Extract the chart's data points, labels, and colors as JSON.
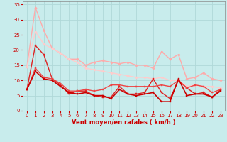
{
  "xlabel": "Vent moyen/en rafales ( km/h )",
  "background_color": "#c8ecec",
  "grid_color": "#b0d8d8",
  "xlim": [
    -0.5,
    23.5
  ],
  "ylim": [
    0,
    36
  ],
  "yticks": [
    0,
    5,
    10,
    15,
    20,
    25,
    30,
    35
  ],
  "xticks": [
    0,
    1,
    2,
    3,
    4,
    5,
    6,
    7,
    8,
    9,
    10,
    11,
    12,
    13,
    14,
    15,
    16,
    17,
    18,
    19,
    20,
    21,
    22,
    23
  ],
  "lines": [
    {
      "x": [
        0,
        1,
        2,
        3,
        4,
        5,
        6,
        7,
        8,
        9,
        10,
        11,
        12,
        13,
        14,
        15,
        16,
        17,
        18,
        19,
        20,
        21,
        22,
        23
      ],
      "y": [
        14.5,
        34,
        26.5,
        20.5,
        19,
        17,
        17,
        15,
        16,
        16.5,
        16,
        15.5,
        16,
        15,
        15,
        14,
        19.5,
        17,
        18.5,
        10.5,
        11,
        12.5,
        10.5,
        10
      ],
      "color": "#ffaaaa",
      "lw": 1.0,
      "marker": "D",
      "ms": 1.8
    },
    {
      "x": [
        0,
        1,
        2,
        3,
        4,
        5,
        6,
        7,
        8,
        9,
        10,
        11,
        12,
        13,
        14,
        15,
        16,
        17,
        18,
        19,
        20,
        21,
        22,
        23
      ],
      "y": [
        14.5,
        26,
        22,
        20.5,
        19,
        17,
        16,
        14,
        13.5,
        13,
        12.5,
        12,
        11.5,
        11,
        11,
        10.5,
        11,
        10,
        10,
        8,
        8.5,
        8,
        8,
        7.5
      ],
      "color": "#ffcccc",
      "lw": 1.0,
      "marker": "D",
      "ms": 1.8
    },
    {
      "x": [
        0,
        1,
        2,
        3,
        4,
        5,
        6,
        7,
        8,
        9,
        10,
        11,
        12,
        13,
        14,
        15,
        16,
        17,
        18,
        19,
        20,
        21,
        22,
        23
      ],
      "y": [
        7,
        21.5,
        18.5,
        10.5,
        8.5,
        5.5,
        6.5,
        6.5,
        5,
        4.5,
        4.5,
        8,
        5.5,
        5.5,
        6,
        10.5,
        6,
        4,
        10,
        7.5,
        5.5,
        6,
        4.5,
        7
      ],
      "color": "#dd2222",
      "lw": 1.0,
      "marker": "s",
      "ms": 2.0
    },
    {
      "x": [
        0,
        1,
        2,
        3,
        4,
        5,
        6,
        7,
        8,
        9,
        10,
        11,
        12,
        13,
        14,
        15,
        16,
        17,
        18,
        19,
        20,
        21,
        22,
        23
      ],
      "y": [
        7,
        14,
        11,
        10.5,
        9,
        6.5,
        6.5,
        7,
        6.5,
        7,
        8.5,
        8.5,
        8,
        8,
        8,
        8,
        8.5,
        8,
        10,
        7.5,
        8.5,
        8,
        6,
        7
      ],
      "color": "#ee4444",
      "lw": 1.0,
      "marker": "s",
      "ms": 2.0
    },
    {
      "x": [
        0,
        1,
        2,
        3,
        4,
        5,
        6,
        7,
        8,
        9,
        10,
        11,
        12,
        13,
        14,
        15,
        16,
        17,
        18,
        19,
        20,
        21,
        22,
        23
      ],
      "y": [
        7,
        13,
        10.5,
        10,
        8,
        6,
        5.5,
        6,
        5,
        5,
        4,
        7,
        5.5,
        5,
        5.5,
        6,
        3,
        3,
        10.5,
        5,
        5.5,
        5.5,
        4.5,
        6.5
      ],
      "color": "#cc0000",
      "lw": 1.2,
      "marker": "s",
      "ms": 2.0
    }
  ],
  "xlabel_fontsize": 6,
  "tick_fontsize": 5,
  "xlabel_color": "#cc0000",
  "tick_color": "#cc0000",
  "axis_color": "#888888"
}
